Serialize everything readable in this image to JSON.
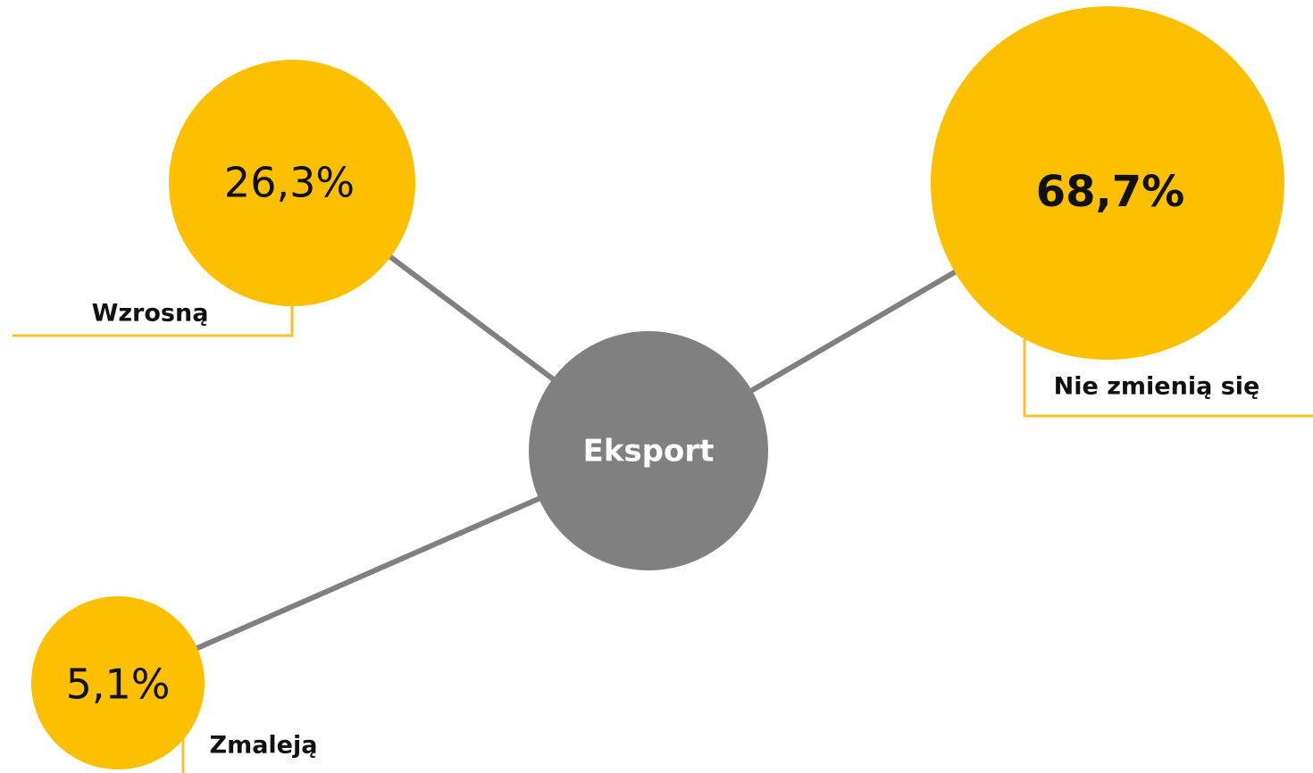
{
  "center": {
    "label": "Eksport"
  },
  "nodes": [
    {
      "value": "26,3%",
      "label": "Wzrosną"
    },
    {
      "value": "68,7%",
      "label": "Nie zmienią się"
    },
    {
      "value": "5,1%",
      "label": "Zmaleją"
    }
  ]
}
